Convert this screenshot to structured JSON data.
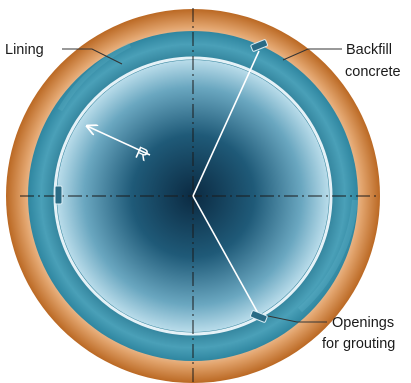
{
  "labels": {
    "lining": "Lining",
    "backfill_line1": "Backfill",
    "backfill_line2": "concrete",
    "openings_line1": "Openings",
    "openings_line2": "for grouting",
    "radius": "R"
  },
  "colors": {
    "backfill_outer": "#b8651f",
    "backfill_inner": "#f3dcc6",
    "ring": "#3f93ab",
    "lining_edge": "#dfeef5",
    "core_center": "#0b2a42",
    "core_edge": "#b9dcea",
    "leader": "#333333"
  }
}
